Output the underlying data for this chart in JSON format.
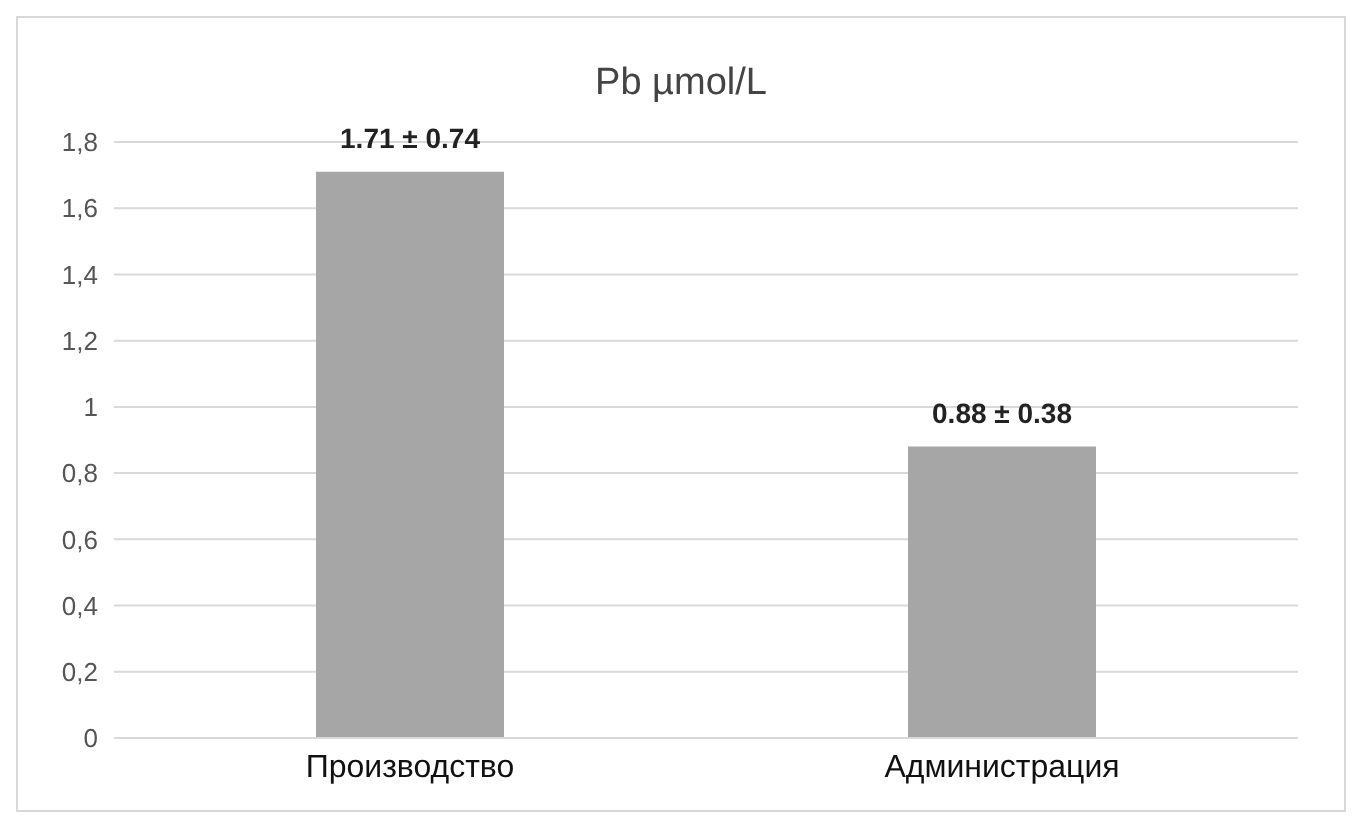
{
  "chart_data": {
    "type": "bar",
    "title": "Pb µmol/L",
    "categories": [
      "Производство",
      "Администрация"
    ],
    "values": [
      1.71,
      0.88
    ],
    "color": "#a6a6a6",
    "value_labels": [
      "1.71 ± 0.74",
      "0.88 ± 0.38"
    ],
    "ylim": [
      0,
      1.8
    ],
    "yticks": [
      0,
      {
        "value": 0.2,
        "label": "0,2"
      },
      {
        "value": 0.4,
        "label": "0,4"
      },
      {
        "value": 0.6,
        "label": "0,6"
      },
      {
        "value": 0.8,
        "label": "0,8"
      },
      1,
      {
        "value": 1.2,
        "label": "1,2"
      },
      {
        "value": 1.4,
        "label": "1,4"
      },
      {
        "value": 1.6,
        "label": "1,6"
      },
      {
        "value": 1.8,
        "label": "1,8"
      }
    ],
    "grid": "y",
    "legend": false
  }
}
